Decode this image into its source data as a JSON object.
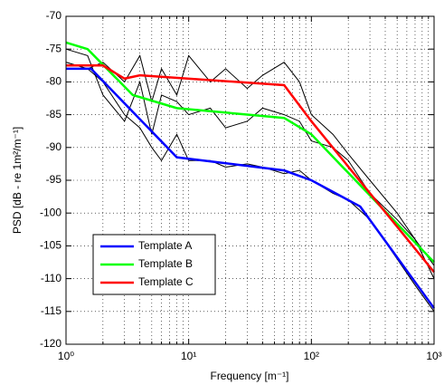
{
  "chart_data": {
    "type": "line",
    "xlabel": "Frequency [m⁻¹]",
    "ylabel": "PSD [dB - re 1m²/m⁻¹]",
    "xscale": "log",
    "xlim": [
      1,
      1000
    ],
    "ylim": [
      -120,
      -70
    ],
    "xticks": [
      {
        "value": 1,
        "label": "10⁰"
      },
      {
        "value": 10,
        "label": "10¹"
      },
      {
        "value": 100,
        "label": "10²"
      },
      {
        "value": 1000,
        "label": "10³"
      }
    ],
    "xminorticks": [
      2,
      3,
      4,
      5,
      6,
      7,
      8,
      9,
      20,
      30,
      40,
      50,
      60,
      70,
      80,
      90,
      200,
      300,
      400,
      500,
      600,
      700,
      800,
      900
    ],
    "yticks": [
      -120,
      -115,
      -110,
      -105,
      -100,
      -95,
      -90,
      -85,
      -80,
      -75,
      -70
    ],
    "grid": true,
    "legend": "lower left",
    "series": [
      {
        "color": "#000000",
        "x": [
          1,
          1.5,
          2,
          3,
          4,
          5,
          6,
          8,
          10,
          15,
          20,
          30,
          40,
          60,
          80,
          100,
          150,
          200,
          300,
          500,
          700,
          1000
        ],
        "values": [
          -77,
          -78,
          -80,
          -85,
          -87,
          -90,
          -92,
          -88,
          -92,
          -92,
          -93,
          -92.5,
          -93,
          -94,
          -93.5,
          -95,
          -97,
          -98,
          -101,
          -107,
          -111,
          -115
        ]
      },
      {
        "color": "#000000",
        "x": [
          1,
          1.5,
          2,
          3,
          4,
          5,
          6,
          8,
          10,
          15,
          20,
          30,
          40,
          60,
          80,
          100,
          150,
          200,
          300,
          500,
          700,
          1000
        ],
        "values": [
          -75,
          -76,
          -82,
          -86,
          -80,
          -88,
          -82,
          -83,
          -85,
          -84,
          -87,
          -86,
          -84,
          -85,
          -86,
          -89,
          -90,
          -92,
          -97,
          -101,
          -104,
          -108
        ]
      },
      {
        "color": "#000000",
        "x": [
          1,
          1.5,
          2,
          3,
          4,
          5,
          6,
          8,
          10,
          15,
          20,
          30,
          40,
          60,
          80,
          100,
          150,
          200,
          300,
          500,
          700,
          1000
        ],
        "values": [
          -77,
          -78,
          -77,
          -80,
          -76,
          -83,
          -78,
          -82,
          -76,
          -80,
          -78,
          -81,
          -79,
          -77,
          -80,
          -85,
          -88,
          -91,
          -95,
          -100,
          -104,
          -110
        ]
      },
      {
        "name": "Template A",
        "color": "#0000ff",
        "x": [
          1,
          1.6,
          8,
          60,
          100,
          250,
          1000
        ],
        "values": [
          -78,
          -78,
          -91.5,
          -93.5,
          -95,
          -99,
          -114.5
        ]
      },
      {
        "name": "Template B",
        "color": "#00ff00",
        "x": [
          1,
          1.5,
          3.5,
          8,
          60,
          100,
          1000
        ],
        "values": [
          -74,
          -75,
          -82,
          -84,
          -85.5,
          -88,
          -107.5
        ]
      },
      {
        "name": "Template C",
        "color": "#ff0000",
        "x": [
          1,
          2,
          3,
          4,
          60,
          100,
          1000
        ],
        "values": [
          -77.5,
          -77.5,
          -79.5,
          -79,
          -80.5,
          -86,
          -109
        ]
      }
    ]
  }
}
